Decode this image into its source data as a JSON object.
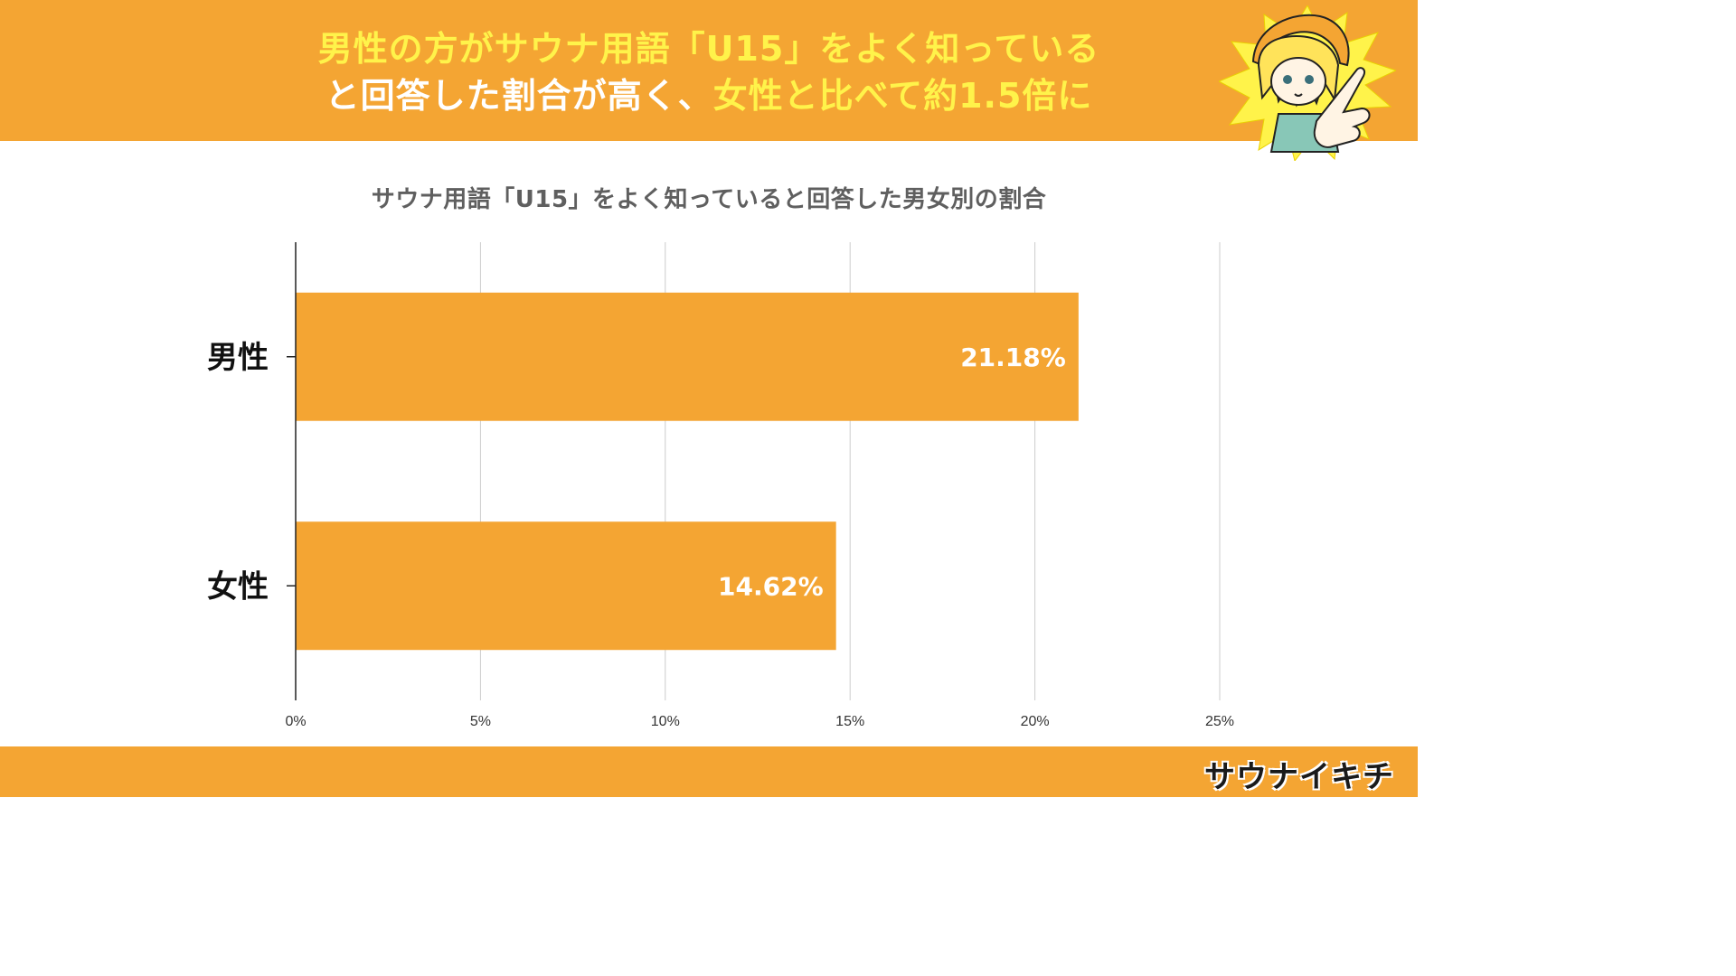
{
  "header": {
    "line1": "男性の方がサウナ用語「U15」をよく知っている",
    "line2_prefix": "と回答した割合が高く、",
    "line2_highlight": "女性と比べて約1.5倍に"
  },
  "colors": {
    "accent": "#f4a533",
    "highlight_text": "#fff34a",
    "bar": "#f4a533"
  },
  "chart_data": {
    "type": "bar",
    "orientation": "horizontal",
    "title": "サウナ用語「U15」をよく知っていると回答した男女別の割合",
    "categories": [
      "男性",
      "女性"
    ],
    "values": [
      21.18,
      14.62
    ],
    "value_labels": [
      "21.18%",
      "14.62%"
    ],
    "xlim": [
      0,
      25
    ],
    "xticks": [
      0,
      5,
      10,
      15,
      20,
      25
    ],
    "xtick_labels": [
      "0%",
      "5%",
      "10%",
      "15%",
      "20%",
      "25%"
    ],
    "grid": true
  },
  "footer": {
    "brand": "サウナイキチ"
  }
}
